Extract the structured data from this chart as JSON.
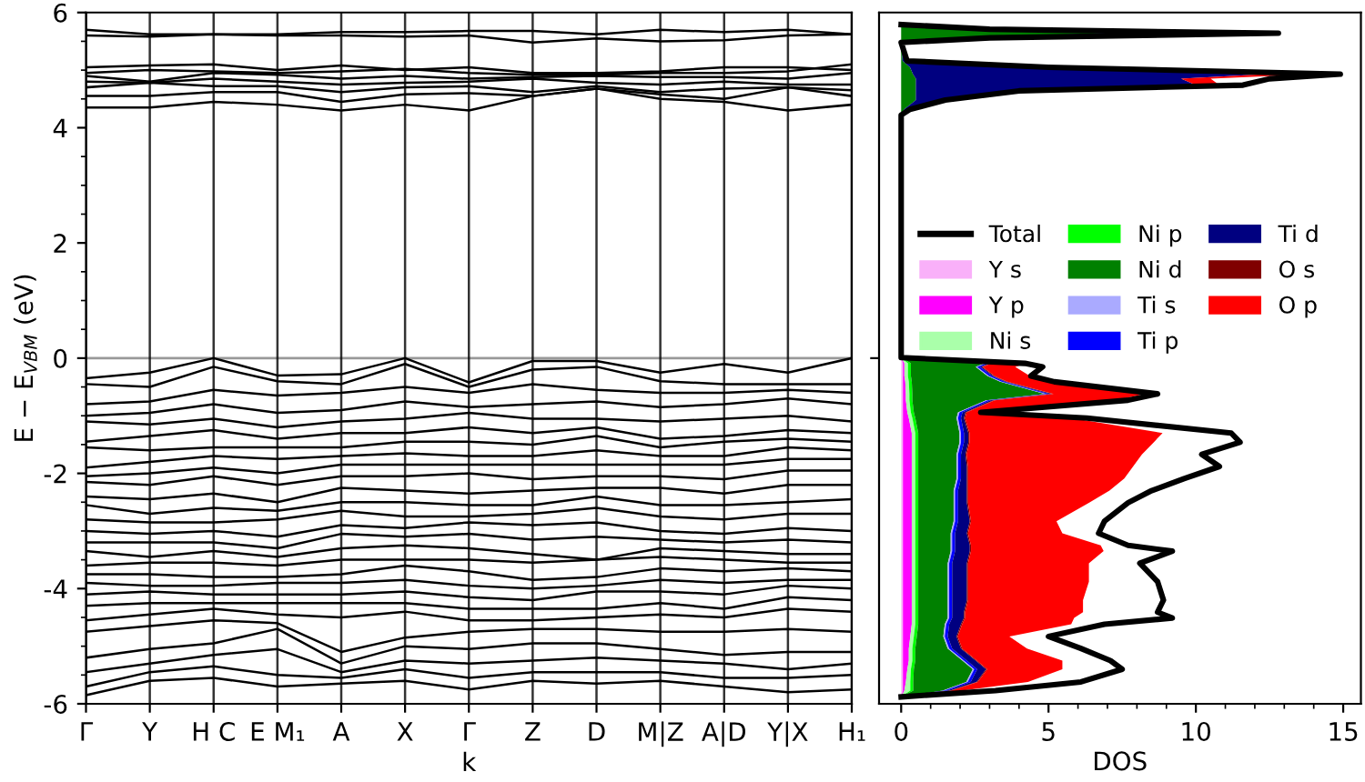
{
  "chart_data": [
    {
      "type": "line",
      "xlabel": "k",
      "ylabel": "E − E$_{VBM}$ (eV)",
      "categories": [
        "Γ",
        "Y",
        "H C",
        "E M₁",
        "A",
        "X",
        "Γ",
        "Z",
        "D",
        "M|Z",
        "A|D",
        "Y|X",
        "H₁"
      ],
      "ylim": [
        -6,
        6
      ],
      "yticks": [
        -6,
        -4,
        -2,
        0,
        2,
        4,
        6
      ],
      "grid": "x",
      "legend": false,
      "line_style": "solid",
      "ref_lines": [
        {
          "axis": "y",
          "value": 0,
          "color": "#999999"
        }
      ],
      "series": [
        {
          "color": "#000000",
          "values": [
            5.7,
            5.62,
            5.62,
            5.62,
            5.66,
            5.66,
            5.68,
            5.68,
            5.62,
            5.7,
            5.66,
            5.7,
            5.62
          ]
        },
        {
          "color": "#000000",
          "values": [
            5.6,
            5.58,
            5.62,
            5.6,
            5.6,
            5.58,
            5.6,
            5.48,
            5.55,
            5.5,
            5.52,
            5.6,
            5.62
          ]
        },
        {
          "color": "#000000",
          "values": [
            5.05,
            5.08,
            5.1,
            5.0,
            5.08,
            5.0,
            5.05,
            4.95,
            4.95,
            4.98,
            5.05,
            5.05,
            5.0
          ]
        },
        {
          "color": "#000000",
          "values": [
            4.95,
            5.0,
            4.98,
            4.95,
            4.98,
            5.02,
            4.95,
            4.92,
            4.92,
            4.95,
            4.95,
            4.98,
            5.1
          ]
        },
        {
          "color": "#000000",
          "values": [
            4.9,
            4.8,
            4.95,
            4.92,
            4.85,
            4.9,
            4.85,
            4.88,
            4.9,
            4.88,
            4.88,
            4.85,
            4.95
          ]
        },
        {
          "color": "#000000",
          "values": [
            4.8,
            4.78,
            4.85,
            4.8,
            4.75,
            4.78,
            4.8,
            4.85,
            4.78,
            4.75,
            4.8,
            4.75,
            4.75
          ]
        },
        {
          "color": "#000000",
          "values": [
            4.7,
            4.78,
            4.72,
            4.72,
            4.62,
            4.7,
            4.72,
            4.62,
            4.72,
            4.62,
            4.68,
            4.7,
            4.65
          ]
        },
        {
          "color": "#000000",
          "values": [
            4.55,
            4.55,
            4.62,
            4.62,
            4.45,
            4.58,
            4.6,
            4.55,
            4.68,
            4.58,
            4.5,
            4.7,
            4.55
          ]
        },
        {
          "color": "#000000",
          "values": [
            4.35,
            4.35,
            4.45,
            4.4,
            4.3,
            4.4,
            4.3,
            4.55,
            4.68,
            4.5,
            4.45,
            4.3,
            4.4
          ]
        },
        {
          "color": "#000000",
          "values": [
            -0.35,
            -0.25,
            0.0,
            -0.3,
            -0.28,
            0.0,
            -0.42,
            -0.05,
            -0.05,
            -0.25,
            -0.1,
            -0.25,
            0.0
          ]
        },
        {
          "color": "#000000",
          "values": [
            -0.45,
            -0.5,
            -0.15,
            -0.4,
            -0.45,
            -0.1,
            -0.5,
            -0.2,
            -0.15,
            -0.4,
            -0.45,
            -0.45,
            -0.45
          ]
        },
        {
          "color": "#000000",
          "values": [
            -0.8,
            -0.75,
            -0.55,
            -0.65,
            -0.6,
            -0.5,
            -0.6,
            -0.45,
            -0.55,
            -0.6,
            -0.6,
            -0.55,
            -0.6
          ]
        },
        {
          "color": "#000000",
          "values": [
            -1.0,
            -0.95,
            -0.8,
            -0.95,
            -0.9,
            -0.75,
            -0.85,
            -0.8,
            -0.75,
            -0.85,
            -0.8,
            -0.7,
            -0.8
          ]
        },
        {
          "color": "#000000",
          "values": [
            -1.1,
            -1.15,
            -1.05,
            -1.2,
            -1.1,
            -1.05,
            -0.95,
            -1.05,
            -1.05,
            -1.1,
            -1.05,
            -1.0,
            -1.1
          ]
        },
        {
          "color": "#000000",
          "values": [
            -1.45,
            -1.35,
            -1.25,
            -1.4,
            -1.3,
            -1.3,
            -1.2,
            -1.3,
            -1.2,
            -1.4,
            -1.35,
            -1.25,
            -1.3
          ]
        },
        {
          "color": "#000000",
          "values": [
            -1.55,
            -1.6,
            -1.55,
            -1.55,
            -1.55,
            -1.45,
            -1.45,
            -1.5,
            -1.35,
            -1.55,
            -1.45,
            -1.4,
            -1.45
          ]
        },
        {
          "color": "#000000",
          "values": [
            -1.9,
            -1.8,
            -1.7,
            -1.75,
            -1.7,
            -1.65,
            -1.7,
            -1.7,
            -1.6,
            -1.7,
            -1.7,
            -1.55,
            -1.6
          ]
        },
        {
          "color": "#000000",
          "values": [
            -2.05,
            -2.0,
            -1.9,
            -2.0,
            -1.85,
            -1.85,
            -1.85,
            -1.85,
            -1.85,
            -1.85,
            -1.85,
            -1.75,
            -1.75
          ]
        },
        {
          "color": "#000000",
          "values": [
            -2.15,
            -2.2,
            -2.05,
            -2.2,
            -2.05,
            -2.05,
            -2.0,
            -2.1,
            -2.05,
            -2.05,
            -2.1,
            -1.95,
            -1.95
          ]
        },
        {
          "color": "#000000",
          "values": [
            -2.4,
            -2.45,
            -2.35,
            -2.5,
            -2.25,
            -2.3,
            -2.35,
            -2.3,
            -2.25,
            -2.25,
            -2.35,
            -2.2,
            -2.2
          ]
        },
        {
          "color": "#000000",
          "values": [
            -2.55,
            -2.7,
            -2.6,
            -2.65,
            -2.5,
            -2.5,
            -2.55,
            -2.55,
            -2.4,
            -2.55,
            -2.55,
            -2.5,
            -2.45
          ]
        },
        {
          "color": "#000000",
          "values": [
            -2.8,
            -2.85,
            -2.85,
            -2.8,
            -2.65,
            -2.75,
            -2.75,
            -2.7,
            -2.6,
            -2.75,
            -2.8,
            -2.7,
            -2.7
          ]
        },
        {
          "color": "#000000",
          "values": [
            -3.0,
            -3.05,
            -3.0,
            -3.1,
            -2.9,
            -2.95,
            -2.85,
            -2.9,
            -2.85,
            -3.0,
            -3.05,
            -2.95,
            -3.0
          ]
        },
        {
          "color": "#000000",
          "values": [
            -3.2,
            -3.2,
            -3.2,
            -3.3,
            -3.05,
            -3.1,
            -3.05,
            -3.15,
            -3.1,
            -3.15,
            -3.2,
            -3.15,
            -3.2
          ]
        },
        {
          "color": "#000000",
          "values": [
            -3.35,
            -3.45,
            -3.35,
            -3.45,
            -3.3,
            -3.25,
            -3.3,
            -3.4,
            -3.5,
            -3.3,
            -3.35,
            -3.4,
            -3.4
          ]
        },
        {
          "color": "#000000",
          "values": [
            -3.6,
            -3.55,
            -3.55,
            -3.6,
            -3.5,
            -3.5,
            -3.5,
            -3.55,
            -3.5,
            -3.45,
            -3.5,
            -3.55,
            -3.55
          ]
        },
        {
          "color": "#000000",
          "values": [
            -3.75,
            -3.75,
            -3.8,
            -3.8,
            -3.75,
            -3.6,
            -3.7,
            -3.85,
            -3.8,
            -3.65,
            -3.7,
            -3.65,
            -3.7
          ]
        },
        {
          "color": "#000000",
          "values": [
            -3.9,
            -3.95,
            -3.95,
            -3.9,
            -3.9,
            -3.85,
            -3.95,
            -4.0,
            -3.95,
            -3.85,
            -3.9,
            -3.85,
            -3.85
          ]
        },
        {
          "color": "#000000",
          "values": [
            -4.1,
            -4.05,
            -4.1,
            -4.1,
            -4.1,
            -4.05,
            -4.15,
            -4.2,
            -4.05,
            -4.05,
            -4.1,
            -3.95,
            -4.0
          ]
        },
        {
          "color": "#000000",
          "values": [
            -4.3,
            -4.25,
            -4.25,
            -4.25,
            -4.25,
            -4.25,
            -4.35,
            -4.35,
            -4.35,
            -4.25,
            -4.35,
            -4.15,
            -4.2
          ]
        },
        {
          "color": "#000000",
          "values": [
            -4.55,
            -4.45,
            -4.35,
            -4.45,
            -4.5,
            -4.4,
            -4.55,
            -4.55,
            -4.5,
            -4.45,
            -4.5,
            -4.35,
            -4.4
          ]
        },
        {
          "color": "#000000",
          "values": [
            -4.75,
            -4.65,
            -4.55,
            -4.6,
            -5.1,
            -4.85,
            -4.75,
            -4.7,
            -4.7,
            -4.75,
            -4.75,
            -4.7,
            -4.75
          ]
        },
        {
          "color": "#000000",
          "values": [
            -5.2,
            -5.05,
            -4.95,
            -4.7,
            -5.3,
            -5.0,
            -5.05,
            -4.95,
            -4.95,
            -5.05,
            -5.15,
            -5.1,
            -5.1
          ]
        },
        {
          "color": "#000000",
          "values": [
            -5.45,
            -5.3,
            -5.15,
            -5.05,
            -5.45,
            -5.25,
            -5.3,
            -5.25,
            -5.2,
            -5.25,
            -5.3,
            -5.4,
            -5.3
          ]
        },
        {
          "color": "#000000",
          "values": [
            -5.7,
            -5.45,
            -5.35,
            -5.5,
            -5.55,
            -5.4,
            -5.55,
            -5.45,
            -5.45,
            -5.45,
            -5.55,
            -5.55,
            -5.5
          ]
        },
        {
          "color": "#000000",
          "values": [
            -5.85,
            -5.6,
            -5.55,
            -5.7,
            -5.65,
            -5.6,
            -5.75,
            -5.6,
            -5.65,
            -5.6,
            -5.7,
            -5.8,
            -5.75
          ]
        }
      ]
    },
    {
      "type": "area",
      "orientation": "horizontal",
      "stacked": true,
      "xlabel": "DOS",
      "x": [
        -5.88,
        -5.77,
        -5.62,
        -5.4,
        -5.25,
        -5.04,
        -4.83,
        -4.62,
        -4.51,
        -4.41,
        -4.2,
        -3.88,
        -3.56,
        -3.35,
        -3.25,
        -3.04,
        -2.83,
        -2.51,
        -2.3,
        -2.09,
        -1.88,
        -1.67,
        -1.46,
        -1.3,
        -1.04,
        -0.94,
        -0.73,
        -0.62,
        -0.41,
        -0.31,
        -0.15,
        -0.09,
        0.01,
        4.22,
        4.32,
        4.48,
        4.64,
        4.74,
        4.85,
        4.93,
        5.05,
        5.16,
        5.48,
        5.56,
        5.64,
        5.71,
        5.79
      ],
      "xlim": [
        -0.75,
        15.6
      ],
      "xticks": [
        0,
        5,
        10,
        15
      ],
      "ylim": [
        -6,
        6
      ],
      "yticks": [
        {
          "value": 0,
          "label": null
        }
      ],
      "tick_labels": "x",
      "legend": "center",
      "grid": false,
      "series": [
        {
          "name": "Total",
          "type": "line",
          "color": "#000000",
          "values": [
            0,
            3.2,
            6.1,
            7.5,
            7.1,
            6.1,
            5.0,
            6.9,
            9.2,
            8.7,
            8.9,
            8.7,
            8.1,
            9.2,
            7.7,
            6.7,
            6.9,
            7.7,
            8.5,
            9.6,
            10.8,
            10.2,
            11.5,
            11.2,
            6.3,
            2.7,
            7.7,
            8.7,
            5.2,
            4.4,
            4.8,
            4.2,
            0,
            0,
            0.3,
            1.5,
            4.0,
            11.6,
            12.5,
            14.9,
            5.0,
            0.2,
            0,
            3.0,
            12.8,
            3.0,
            0
          ]
        },
        {
          "name": "Y s",
          "color": "#f9b0f9",
          "values": [
            0,
            0.06,
            0.06,
            0.06,
            0.06,
            0.06,
            0.06,
            0.06,
            0.06,
            0.06,
            0.06,
            0.06,
            0.06,
            0.06,
            0.06,
            0.06,
            0.06,
            0.06,
            0.06,
            0.06,
            0.06,
            0.06,
            0.06,
            0.06,
            0.06,
            0.06,
            0.06,
            0.06,
            0.06,
            0.06,
            0.06,
            0.06,
            0,
            null,
            null,
            null,
            null,
            null,
            null,
            null,
            null,
            null,
            null,
            null,
            null,
            null,
            null
          ]
        },
        {
          "name": "Y p",
          "color": "#ff00ff",
          "values": [
            0,
            0.05,
            0.1,
            0.15,
            0.2,
            0.2,
            0.25,
            0.3,
            0.3,
            0.3,
            0.3,
            0.3,
            0.3,
            0.3,
            0.3,
            0.3,
            0.3,
            0.3,
            0.3,
            0.3,
            0.3,
            0.3,
            0.3,
            0.3,
            0.2,
            0.15,
            0.1,
            0.1,
            0.08,
            0.05,
            0.05,
            0.05,
            0,
            null,
            null,
            null,
            null,
            null,
            null,
            null,
            null,
            null,
            null,
            null,
            null,
            null,
            null
          ]
        },
        {
          "name": "Ni s",
          "color": "#aaffaa",
          "values": [
            0,
            0.2,
            0.15,
            0.12,
            0.12,
            0.12,
            0.12,
            0.12,
            0.12,
            0.12,
            0.12,
            0.12,
            0.12,
            0.12,
            0.12,
            0.12,
            0.12,
            0.12,
            0.12,
            0.12,
            0.12,
            0.12,
            0.12,
            0.12,
            0.12,
            0.12,
            0.12,
            0.12,
            0.12,
            0.12,
            0.12,
            0.12,
            0,
            null,
            null,
            null,
            null,
            null,
            null,
            null,
            null,
            null,
            null,
            null,
            null,
            null,
            null
          ]
        },
        {
          "name": "Ni p",
          "color": "#00ff00",
          "values": [
            0,
            0.1,
            0.1,
            0.1,
            0.1,
            0.1,
            0.1,
            0.1,
            0.1,
            0.1,
            0.1,
            0.1,
            0.1,
            0.1,
            0.1,
            0.1,
            0.1,
            0.1,
            0.1,
            0.1,
            0.1,
            0.1,
            0.1,
            0.1,
            0.1,
            0.1,
            0.1,
            0.1,
            0.1,
            0.1,
            0.1,
            0.1,
            0,
            null,
            null,
            null,
            null,
            null,
            null,
            null,
            null,
            null,
            null,
            null,
            null,
            null,
            null
          ]
        },
        {
          "name": "Ni d",
          "color": "#008000",
          "values": [
            0,
            1.0,
            1.8,
            2.0,
            1.6,
            1.1,
            0.9,
            0.9,
            1.0,
            1.0,
            1.0,
            1.0,
            1.0,
            1.1,
            1.1,
            1.1,
            1.2,
            1.2,
            1.2,
            1.3,
            1.3,
            1.3,
            1.4,
            1.4,
            1.4,
            1.5,
            2.5,
            4.5,
            3.0,
            2.6,
            2.2,
            2.5,
            0,
            0,
            0.1,
            0.5,
            0.5,
            0.5,
            0.5,
            0.4,
            0.3,
            0.05,
            0,
            2.0,
            7.0,
            2.0,
            0
          ]
        },
        {
          "name": "Ti s",
          "color": "#aaaaff",
          "values": [
            0,
            0.05,
            0.05,
            0.05,
            0.05,
            0.05,
            0.05,
            0.05,
            0.05,
            0.05,
            0.05,
            0.05,
            0.05,
            0.05,
            0.05,
            0.05,
            0.05,
            0.05,
            0.05,
            0.05,
            0.05,
            0.05,
            0.05,
            0.05,
            0.05,
            0.05,
            0.05,
            0.05,
            0.05,
            0.05,
            0.05,
            0.05,
            0,
            null,
            null,
            null,
            null,
            null,
            null,
            null,
            null,
            null,
            null,
            null,
            null,
            null,
            null
          ]
        },
        {
          "name": "Ti p",
          "color": "#0000ff",
          "values": [
            0,
            0.1,
            0.1,
            0.1,
            0.1,
            0.1,
            0.1,
            0.1,
            0.1,
            0.1,
            0.1,
            0.1,
            0.1,
            0.1,
            0.1,
            0.1,
            0.1,
            0.1,
            0.1,
            0.1,
            0.1,
            0.1,
            0.1,
            0.1,
            0.1,
            0.1,
            0.1,
            0.1,
            0.1,
            0.1,
            0.1,
            0.1,
            0,
            null,
            null,
            null,
            null,
            null,
            null,
            null,
            null,
            null,
            null,
            null,
            null,
            null,
            null
          ]
        },
        {
          "name": "Ti d",
          "color": "#000080",
          "values": [
            0,
            0.1,
            0.2,
            0.3,
            0.3,
            0.3,
            0.3,
            0.4,
            0.4,
            0.4,
            0.5,
            0.5,
            0.5,
            0.5,
            0.5,
            0.4,
            0.4,
            0.3,
            0.3,
            0.2,
            0.2,
            0.15,
            0.15,
            0.15,
            0.1,
            0.1,
            0.1,
            0.1,
            0.05,
            0.05,
            0.05,
            0.05,
            0,
            0,
            0.15,
            0.8,
            3.0,
            9.5,
            9.0,
            12.0,
            4.3,
            0.1,
            0,
            0.5,
            5.0,
            0.5,
            0
          ]
        },
        {
          "name": "O s",
          "color": "#800000",
          "values": [
            0,
            0.04,
            0.04,
            0.04,
            0.04,
            0.04,
            0.04,
            0.04,
            0.04,
            0.04,
            0.04,
            0.04,
            0.04,
            0.04,
            0.04,
            0.04,
            0.04,
            0.04,
            0.04,
            0.04,
            0.04,
            0.04,
            0.04,
            0.04,
            0.04,
            0.04,
            0.04,
            0.04,
            0.04,
            0.04,
            0.04,
            0.04,
            0,
            null,
            null,
            null,
            null,
            null,
            null,
            null,
            null,
            null,
            null,
            null,
            null,
            null,
            null
          ]
        },
        {
          "name": "O p",
          "color": "#ff0000",
          "values": [
            0,
            0.35,
            1.7,
            2.55,
            2.9,
            2.2,
            1.75,
            3.7,
            3.7,
            4.0,
            3.9,
            4.1,
            4.1,
            4.5,
            4.4,
            3.2,
            2.9,
            4.1,
            4.8,
            5.3,
            5.6,
            5.95,
            6.25,
            6.55,
            3.6,
            0.65,
            4.1,
            3.1,
            1.47,
            1.2,
            1.1,
            1.2,
            0,
            0,
            0.03,
            0.1,
            0.3,
            0.8,
            1.0,
            1.6,
            0.3,
            0.03,
            0,
            0.4,
            0.3,
            0.4,
            0
          ]
        }
      ]
    }
  ]
}
